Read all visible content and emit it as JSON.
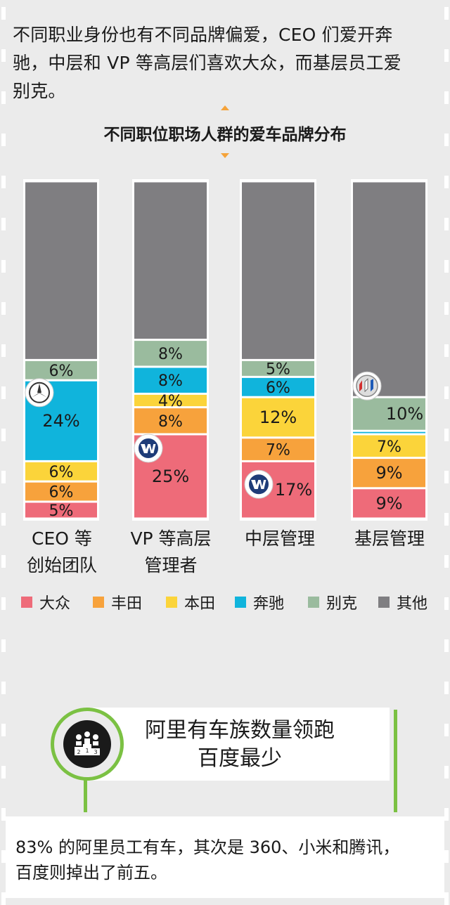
{
  "intro": {
    "line1": "不同职业身份也有不同品牌偏爱，CEO 们爱开奔",
    "line2": "驰，中层和 VP 等高层们喜欢大众，而基层员工爱",
    "line3": "别克。"
  },
  "colors": {
    "bg": "#ebebeb",
    "accent": "#f5a33a",
    "green": "#7bc143"
  },
  "chart_data": {
    "type": "bar",
    "stacked": true,
    "title": "不同职位职场人群的爱车品牌分布",
    "categories": [
      {
        "line1": "CEO 等",
        "line2": "创始团队"
      },
      {
        "line1": "VP 等高层",
        "line2": "管理者"
      },
      {
        "line1": "中层管理",
        "line2": ""
      },
      {
        "line1": "基层管理",
        "line2": ""
      }
    ],
    "series": [
      {
        "name": "大众",
        "color": "#ee6b79",
        "values": [
          5,
          25,
          17,
          9
        ],
        "labels": [
          "5%",
          "25%",
          "17%",
          "9%"
        ]
      },
      {
        "name": "丰田",
        "color": "#f7a23c",
        "values": [
          6,
          8,
          7,
          9
        ],
        "labels": [
          "6%",
          "8%",
          "7%",
          "9%"
        ]
      },
      {
        "name": "本田",
        "color": "#fbd43a",
        "values": [
          6,
          4,
          12,
          7
        ],
        "labels": [
          "6%",
          "4%",
          "12%",
          "7%"
        ]
      },
      {
        "name": "奔驰",
        "color": "#10b4dc",
        "values": [
          24,
          8,
          6,
          1
        ],
        "labels": [
          "24%",
          "8%",
          "6%",
          ""
        ]
      },
      {
        "name": "别克",
        "color": "#9abb9e",
        "values": [
          6,
          8,
          5,
          10
        ],
        "labels": [
          "6%",
          "8%",
          "5%",
          "10%"
        ]
      },
      {
        "name": "其他",
        "color": "#7f7e81",
        "values": [
          53,
          47,
          53,
          64
        ],
        "labels": [
          "",
          "",
          "",
          ""
        ]
      }
    ],
    "ylim": [
      0,
      100
    ],
    "logos": [
      {
        "bar": 0,
        "series": 3,
        "icon": "mercedes-icon"
      },
      {
        "bar": 1,
        "series": 0,
        "icon": "volkswagen-icon"
      },
      {
        "bar": 2,
        "series": 0,
        "icon": "volkswagen-icon"
      },
      {
        "bar": 3,
        "series": 4,
        "icon": "buick-icon"
      }
    ]
  },
  "legend": [
    {
      "label": "大众",
      "color": "#ee6b79"
    },
    {
      "label": "丰田",
      "color": "#f7a23c"
    },
    {
      "label": "本田",
      "color": "#fbd43a"
    },
    {
      "label": "奔驰",
      "color": "#10b4dc"
    },
    {
      "label": "别克",
      "color": "#9abb9e"
    },
    {
      "label": "其他",
      "color": "#7f7e81"
    }
  ],
  "section": {
    "title_line1": "阿里有车族数量领跑",
    "title_line2": "百度最少",
    "badge_icon": "people-ranking-icon"
  },
  "bottom": {
    "line1": "83% 的阿里员工有车，其次是 360、小米和腾讯，",
    "line2": "百度则掉出了前五。"
  }
}
